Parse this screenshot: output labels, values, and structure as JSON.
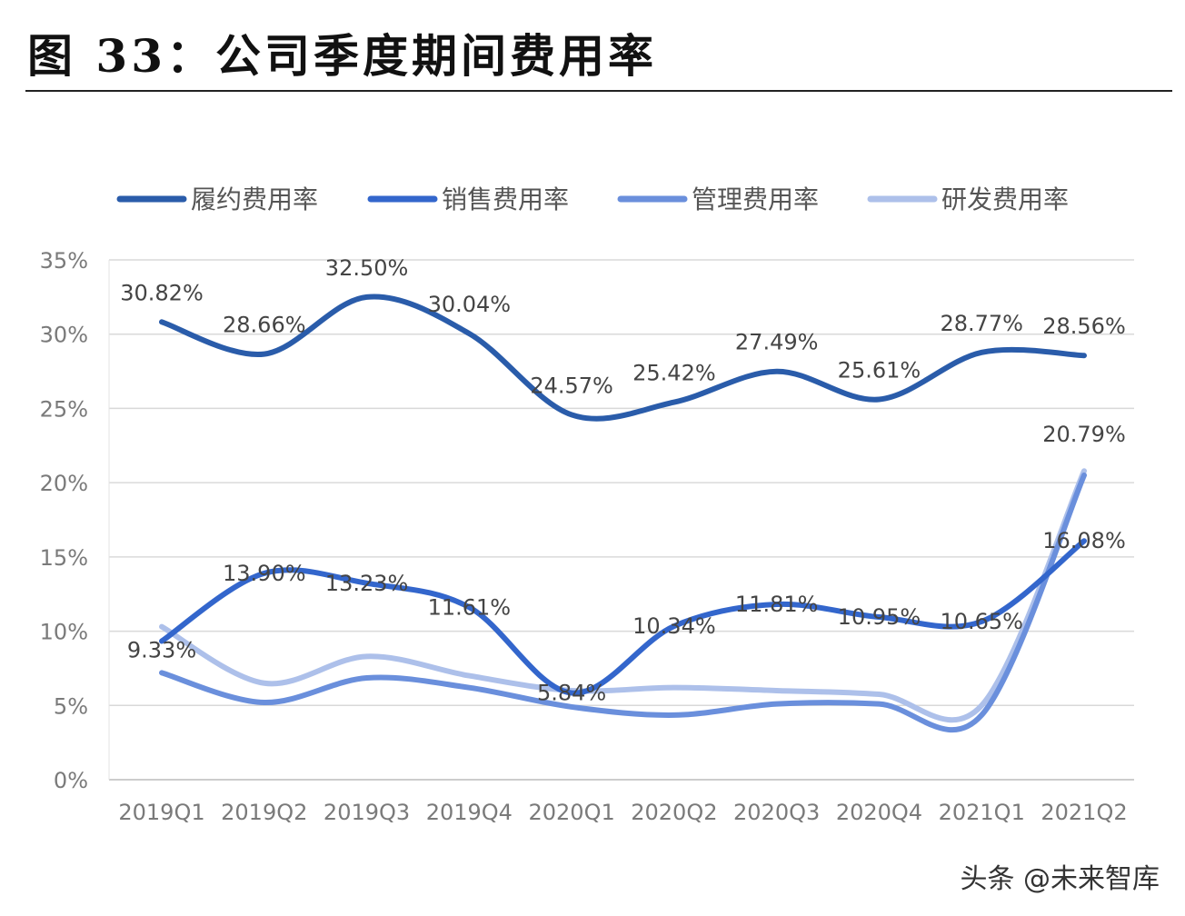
{
  "title": "图 33：公司季度期间费用率",
  "watermark": "头条 @未来智库",
  "chart_data": {
    "type": "line",
    "title": "",
    "categories": [
      "2019Q1",
      "2019Q2",
      "2019Q3",
      "2019Q4",
      "2020Q1",
      "2020Q2",
      "2020Q3",
      "2020Q4",
      "2021Q1",
      "2021Q2"
    ],
    "ylim": [
      0,
      35
    ],
    "yticks": [
      0,
      5,
      10,
      15,
      20,
      25,
      30,
      35
    ],
    "ytick_labels": [
      "0%",
      "5%",
      "10%",
      "15%",
      "20%",
      "25%",
      "30%",
      "35%"
    ],
    "grid": true,
    "legend": "top",
    "series": [
      {
        "name": "履约费用率",
        "color": "#2a5caa",
        "values": [
          30.82,
          28.66,
          32.5,
          30.04,
          24.57,
          25.42,
          27.49,
          25.61,
          28.77,
          28.56
        ],
        "labels": [
          "30.82%",
          "28.66%",
          "32.50%",
          "30.04%",
          "24.57%",
          "25.42%",
          "27.49%",
          "25.61%",
          "28.77%",
          "28.56%"
        ]
      },
      {
        "name": "销售费用率",
        "color": "#3366cc",
        "values": [
          9.33,
          13.9,
          13.23,
          11.61,
          5.84,
          10.34,
          11.81,
          10.95,
          10.65,
          16.08
        ],
        "labels": [
          "9.33%",
          "13.90%",
          "13.23%",
          "11.61%",
          "5.84%",
          "10.34%",
          "11.81%",
          "10.95%",
          "10.65%",
          "16.08%"
        ]
      },
      {
        "name": "管理费用率",
        "color": "#6a8fdc",
        "values": [
          7.2,
          5.2,
          6.85,
          6.2,
          4.9,
          4.35,
          5.1,
          5.1,
          4.35,
          20.5
        ],
        "labels": []
      },
      {
        "name": "研发费用率",
        "color": "#adc0ea",
        "values": [
          10.3,
          6.5,
          8.3,
          7.0,
          6.0,
          6.2,
          6.0,
          5.75,
          5.0,
          20.79
        ],
        "labels": [
          "",
          "",
          "",
          "",
          "",
          "",
          "",
          "",
          "",
          "20.79%"
        ]
      }
    ]
  }
}
